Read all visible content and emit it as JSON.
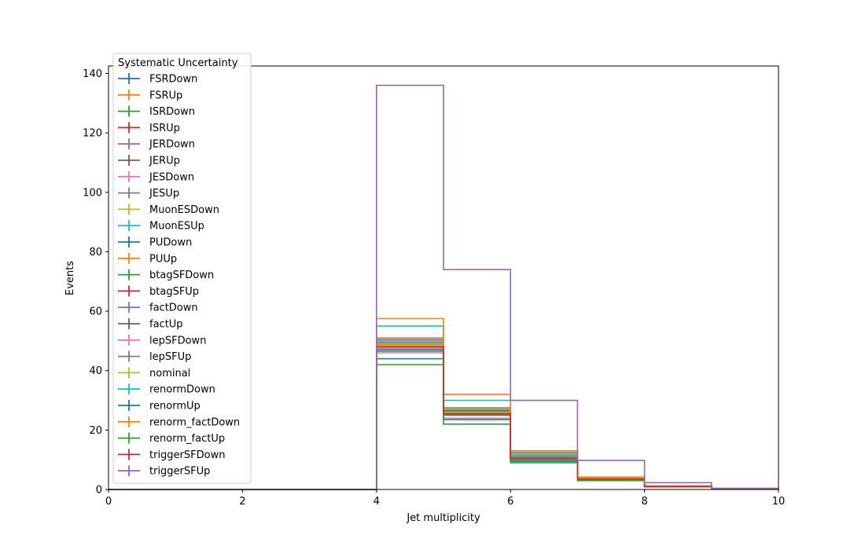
{
  "chart_data": {
    "type": "step",
    "title": "",
    "xlabel": "Jet multiplicity",
    "ylabel": "Events",
    "xlim": [
      0,
      10
    ],
    "ylim": [
      0,
      142.5
    ],
    "xticks": [
      0,
      2,
      4,
      6,
      8,
      10
    ],
    "yticks": [
      0,
      20,
      40,
      60,
      80,
      100,
      120,
      140
    ],
    "bin_edges": [
      0,
      1,
      2,
      3,
      4,
      5,
      6,
      7,
      8,
      9,
      10
    ],
    "legend": {
      "title": "Systematic Uncertainty",
      "placement": "upper-left"
    },
    "series": [
      {
        "name": "FSRDown",
        "color": "#1f77b4",
        "values": [
          0,
          0,
          0,
          0,
          48.5,
          26,
          10.5,
          3.5,
          1,
          0.3
        ]
      },
      {
        "name": "FSRUp",
        "color": "#ff7f0e",
        "values": [
          0,
          0,
          0,
          0,
          49,
          26.5,
          11,
          3.6,
          1,
          0.3
        ]
      },
      {
        "name": "ISRDown",
        "color": "#2ca02c",
        "values": [
          0,
          0,
          0,
          0,
          48.5,
          25.5,
          10.5,
          3.5,
          1,
          0.3
        ]
      },
      {
        "name": "ISRUp",
        "color": "#d62728",
        "values": [
          0,
          0,
          0,
          0,
          48,
          26,
          10.5,
          3.5,
          1,
          0.3
        ]
      },
      {
        "name": "JERDown",
        "color": "#9467bd",
        "values": [
          0,
          0,
          0,
          0,
          48.5,
          26,
          10.5,
          3.5,
          1,
          0.3
        ]
      },
      {
        "name": "JERUp",
        "color": "#8c564b",
        "values": [
          0,
          0,
          0,
          0,
          48.5,
          26,
          10.5,
          3.5,
          1,
          0.3
        ]
      },
      {
        "name": "JESDown",
        "color": "#e377c2",
        "values": [
          0,
          0,
          0,
          0,
          46,
          24,
          9.5,
          3,
          0.9,
          0.3
        ]
      },
      {
        "name": "JESUp",
        "color": "#7f7f7f",
        "values": [
          0,
          0,
          0,
          0,
          50,
          27.5,
          12,
          3.8,
          1.1,
          0.3
        ]
      },
      {
        "name": "MuonESDown",
        "color": "#bcbd22",
        "values": [
          0,
          0,
          0,
          0,
          48.5,
          26,
          10.5,
          3.5,
          1,
          0.3
        ]
      },
      {
        "name": "MuonESUp",
        "color": "#17becf",
        "values": [
          0,
          0,
          0,
          0,
          55,
          30,
          12.5,
          4,
          1.2,
          0.3
        ]
      },
      {
        "name": "PUDown",
        "color": "#1f77b4",
        "values": [
          0,
          0,
          0,
          0,
          44,
          23.5,
          9.5,
          3.2,
          0.9,
          0.3
        ]
      },
      {
        "name": "PUUp",
        "color": "#ff7f0e",
        "values": [
          0,
          0,
          0,
          0,
          57.5,
          32,
          13,
          4.2,
          1.2,
          0.3
        ]
      },
      {
        "name": "btagSFDown",
        "color": "#2ca02c",
        "values": [
          0,
          0,
          0,
          0,
          42,
          22,
          9,
          3,
          0.9,
          0.2
        ]
      },
      {
        "name": "btagSFUp",
        "color": "#d62728",
        "values": [
          0,
          0,
          0,
          0,
          47,
          25.5,
          10.5,
          3.5,
          1,
          0.3
        ]
      },
      {
        "name": "factDown",
        "color": "#9467bd",
        "values": [
          0,
          0,
          0,
          0,
          50.5,
          27,
          11.5,
          3.7,
          1.1,
          0.3
        ]
      },
      {
        "name": "factUp",
        "color": "#8c564b",
        "values": [
          0,
          0,
          0,
          0,
          49.5,
          26.5,
          11,
          3.6,
          1,
          0.3
        ]
      },
      {
        "name": "lepSFDown",
        "color": "#e377c2",
        "values": [
          0,
          0,
          0,
          0,
          47.5,
          25,
          10,
          3.4,
          1,
          0.3
        ]
      },
      {
        "name": "lepSFUp",
        "color": "#7f7f7f",
        "values": [
          0,
          0,
          0,
          0,
          49.5,
          27,
          11,
          3.6,
          1.1,
          0.3
        ]
      },
      {
        "name": "nominal",
        "color": "#bcbd22",
        "values": [
          0,
          0,
          0,
          0,
          48.5,
          26,
          10.5,
          3.5,
          1,
          0.3
        ]
      },
      {
        "name": "renormDown",
        "color": "#17becf",
        "values": [
          0,
          0,
          0,
          0,
          50,
          27,
          11.5,
          3.7,
          1.1,
          0.3
        ]
      },
      {
        "name": "renormUp",
        "color": "#1f77b4",
        "values": [
          0,
          0,
          0,
          0,
          47,
          25.5,
          10,
          3.4,
          1,
          0.3
        ]
      },
      {
        "name": "renorm_factDown",
        "color": "#ff7f0e",
        "values": [
          0,
          0,
          0,
          0,
          51,
          27.5,
          12,
          3.8,
          1.1,
          0.3
        ]
      },
      {
        "name": "renorm_factUp",
        "color": "#2ca02c",
        "values": [
          0,
          0,
          0,
          0,
          46.5,
          25,
          10,
          3.3,
          1,
          0.3
        ]
      },
      {
        "name": "triggerSFDown",
        "color": "#d62728",
        "values": [
          0,
          0,
          0,
          0,
          48,
          25.5,
          10.5,
          3.5,
          1,
          0.3
        ]
      },
      {
        "name": "triggerSFUp",
        "color": "#9467bd",
        "values": [
          0,
          0,
          0,
          0,
          136,
          74,
          30,
          9.8,
          2.3,
          0.4
        ]
      }
    ]
  }
}
